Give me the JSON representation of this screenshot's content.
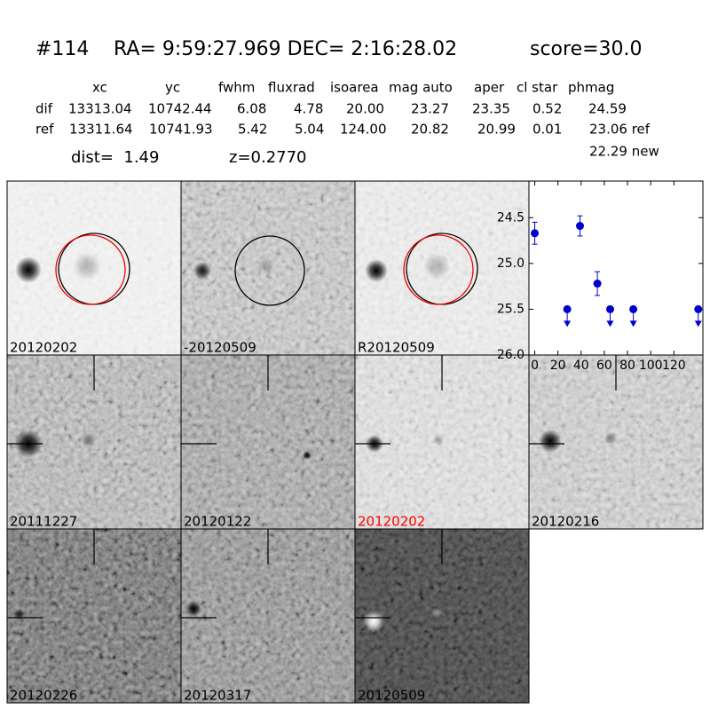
{
  "header": {
    "id": "#114",
    "coords": "RA= 9:59:27.969 DEC= 2:16:28.02",
    "score": "score=30.0"
  },
  "table": {
    "columns": [
      "xc",
      "yc",
      "fwhm",
      "fluxrad",
      "isoarea",
      "mag auto",
      "aper",
      "cl star",
      "phmag"
    ],
    "rows": [
      [
        "dif",
        "13313.04",
        "10742.44",
        "6.08",
        "4.78",
        "20.00",
        "23.27",
        "23.35",
        "0.52",
        "24.59"
      ],
      [
        "ref",
        "13311.64",
        "10741.93",
        "5.42",
        "5.04",
        "124.00",
        "20.82",
        "20.99",
        "0.01",
        "23.06 ref"
      ]
    ],
    "dist": "dist=  1.49",
    "z": "z=0.2770",
    "new_mag": "22.29 new"
  },
  "panels": [
    {
      "label": "20120202"
    },
    {
      "label": "-20120509"
    },
    {
      "label": "R20120509"
    },
    {
      "label": "20111227"
    },
    {
      "label": "20120122"
    },
    {
      "label": "20120202",
      "label_color": "#ff0000"
    },
    {
      "label": "20120216"
    },
    {
      "label": "20120226"
    },
    {
      "label": "20120317"
    },
    {
      "label": "20120509"
    }
  ],
  "chart_data": {
    "type": "scatter",
    "xlim": [
      -5,
      145
    ],
    "xticks": [
      0,
      20,
      40,
      60,
      80,
      100,
      120
    ],
    "ylim": [
      26.0,
      24.1
    ],
    "yticks": [
      24.5,
      {
        "value": 25,
        "label": "25.0"
      },
      25.5,
      {
        "value": 26,
        "label": "26.0"
      }
    ],
    "series": [
      {
        "color": "#0000cc",
        "x": [
          0,
          39,
          54
        ],
        "values": [
          24.67,
          24.59,
          25.22
        ],
        "errors": [
          0.12,
          0.11,
          0.13
        ]
      },
      {
        "color": "#0000cc",
        "x": [
          28,
          65,
          85,
          141
        ],
        "values": [
          25.5,
          25.5,
          25.5,
          25.5
        ],
        "upper_limit": true
      }
    ]
  }
}
